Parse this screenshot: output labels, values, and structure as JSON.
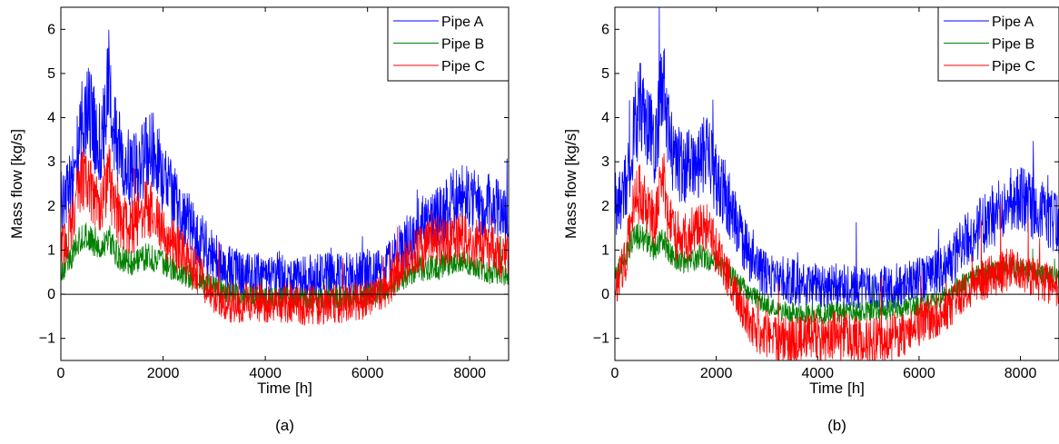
{
  "chart_data": [
    {
      "type": "line",
      "panel_label": "(a)",
      "xlabel": "Time [h]",
      "ylabel": "Mass flow [kg/s]",
      "xlim": [
        0,
        8760
      ],
      "ylim": [
        -1.5,
        6.5
      ],
      "xticks": [
        0,
        2000,
        4000,
        6000,
        8000
      ],
      "yticks": [
        -1,
        0,
        1,
        2,
        3,
        4,
        5,
        6
      ],
      "ytick_labels": [
        "−1",
        "0",
        "1",
        "2",
        "3",
        "4",
        "5",
        "6"
      ],
      "zero_line": true,
      "grid": false,
      "legend": "top-right",
      "x": [
        0,
        200,
        300,
        400,
        500,
        600,
        700,
        800,
        900,
        950,
        1000,
        1100,
        1200,
        1400,
        1600,
        1700,
        1800,
        1900,
        2000,
        2200,
        2400,
        2600,
        2800,
        3000,
        3200,
        3400,
        3600,
        3800,
        4000,
        4200,
        4400,
        4600,
        4800,
        5000,
        5200,
        5400,
        5600,
        5800,
        6000,
        6200,
        6400,
        6600,
        6800,
        7000,
        7200,
        7400,
        7600,
        7800,
        8000,
        8200,
        8400,
        8600,
        8760
      ],
      "series": [
        {
          "name": "Pipe A",
          "color": "#0000ff",
          "noise": 0.9,
          "values": [
            2.2,
            2.4,
            3.0,
            3.8,
            4.2,
            4.0,
            3.6,
            3.4,
            4.4,
            5.0,
            4.0,
            3.4,
            3.0,
            2.8,
            3.0,
            3.2,
            3.2,
            3.0,
            2.6,
            2.2,
            1.8,
            1.4,
            1.1,
            0.8,
            0.6,
            0.5,
            0.45,
            0.4,
            0.4,
            0.45,
            0.4,
            0.38,
            0.38,
            0.38,
            0.4,
            0.4,
            0.4,
            0.4,
            0.45,
            0.45,
            0.6,
            0.9,
            1.2,
            1.5,
            1.6,
            1.8,
            2.0,
            2.3,
            2.2,
            2.0,
            2.0,
            1.8,
            1.7
          ]
        },
        {
          "name": "Pipe B",
          "color": "#008000",
          "noise": 0.45,
          "values": [
            0.5,
            0.8,
            1.1,
            1.3,
            1.3,
            1.2,
            1.1,
            1.0,
            1.2,
            1.3,
            1.1,
            0.9,
            0.8,
            0.7,
            0.8,
            0.9,
            0.8,
            0.75,
            0.7,
            0.55,
            0.45,
            0.35,
            0.25,
            0.15,
            0.05,
            0.0,
            -0.05,
            -0.05,
            -0.08,
            -0.08,
            -0.08,
            -0.1,
            -0.1,
            -0.1,
            -0.1,
            -0.08,
            -0.05,
            -0.05,
            0.0,
            0.05,
            0.15,
            0.3,
            0.45,
            0.55,
            0.6,
            0.6,
            0.7,
            0.75,
            0.7,
            0.6,
            0.5,
            0.5,
            0.4
          ]
        },
        {
          "name": "Pipe C",
          "color": "#ff0000",
          "noise": 0.8,
          "values": [
            1.0,
            1.5,
            2.2,
            2.6,
            2.6,
            2.3,
            2.0,
            1.9,
            2.5,
            2.8,
            2.2,
            1.8,
            1.6,
            1.5,
            1.8,
            2.0,
            1.8,
            1.6,
            1.4,
            1.1,
            0.9,
            0.6,
            0.3,
            0.0,
            -0.15,
            -0.2,
            -0.2,
            -0.2,
            -0.2,
            -0.2,
            -0.2,
            -0.2,
            -0.25,
            -0.25,
            -0.25,
            -0.2,
            -0.2,
            -0.15,
            -0.1,
            0.0,
            0.2,
            0.5,
            0.8,
            1.0,
            1.1,
            1.2,
            1.2,
            1.3,
            1.2,
            1.1,
            1.0,
            0.9,
            0.9
          ]
        }
      ]
    },
    {
      "type": "line",
      "panel_label": "(b)",
      "xlabel": "Time [h]",
      "ylabel": "Mass flow [kg/s]",
      "xlim": [
        0,
        8760
      ],
      "ylim": [
        -1.5,
        6.5
      ],
      "xticks": [
        0,
        2000,
        4000,
        6000,
        8000
      ],
      "yticks": [
        -1,
        0,
        1,
        2,
        3,
        4,
        5,
        6
      ],
      "ytick_labels": [
        "−1",
        "0",
        "1",
        "2",
        "3",
        "4",
        "5",
        "6"
      ],
      "zero_line": true,
      "grid": false,
      "legend": "top-right",
      "x": [
        0,
        200,
        300,
        400,
        500,
        600,
        700,
        800,
        900,
        950,
        1000,
        1100,
        1200,
        1400,
        1600,
        1700,
        1800,
        1900,
        2000,
        2200,
        2400,
        2600,
        2800,
        3000,
        3200,
        3400,
        3600,
        3800,
        4000,
        4200,
        4400,
        4600,
        4800,
        5000,
        5200,
        5400,
        5600,
        5800,
        6000,
        6200,
        6400,
        6600,
        6800,
        7000,
        7200,
        7400,
        7600,
        7800,
        8000,
        8200,
        8400,
        8600,
        8760
      ],
      "series": [
        {
          "name": "Pipe A",
          "color": "#0000ff",
          "noise": 0.9,
          "values": [
            2.0,
            2.4,
            3.0,
            3.8,
            4.2,
            4.0,
            3.6,
            3.4,
            4.4,
            5.0,
            4.0,
            3.4,
            3.0,
            2.8,
            3.0,
            3.2,
            3.2,
            3.0,
            2.6,
            2.2,
            1.6,
            1.0,
            0.6,
            0.4,
            0.35,
            0.3,
            0.25,
            0.2,
            0.2,
            0.2,
            0.18,
            0.15,
            0.12,
            0.1,
            0.12,
            0.15,
            0.2,
            0.25,
            0.3,
            0.4,
            0.5,
            0.7,
            1.0,
            1.3,
            1.5,
            1.7,
            1.9,
            2.1,
            2.1,
            2.0,
            1.9,
            1.7,
            1.5
          ]
        },
        {
          "name": "Pipe B",
          "color": "#008000",
          "noise": 0.4,
          "values": [
            0.4,
            0.8,
            1.1,
            1.3,
            1.3,
            1.2,
            1.1,
            1.0,
            1.2,
            1.3,
            1.1,
            0.9,
            0.8,
            0.7,
            0.8,
            0.9,
            0.8,
            0.75,
            0.7,
            0.5,
            0.3,
            0.1,
            -0.1,
            -0.25,
            -0.35,
            -0.4,
            -0.42,
            -0.45,
            -0.45,
            -0.42,
            -0.4,
            -0.4,
            -0.4,
            -0.38,
            -0.35,
            -0.35,
            -0.32,
            -0.3,
            -0.25,
            -0.2,
            -0.1,
            0.0,
            0.2,
            0.35,
            0.45,
            0.5,
            0.55,
            0.6,
            0.55,
            0.5,
            0.45,
            0.4,
            0.35
          ]
        },
        {
          "name": "Pipe C",
          "color": "#ff0000",
          "noise": 0.8,
          "values": [
            0.2,
            0.7,
            1.5,
            2.1,
            2.3,
            2.0,
            1.8,
            1.6,
            2.4,
            2.8,
            2.0,
            1.6,
            1.3,
            1.3,
            1.5,
            1.6,
            1.5,
            1.3,
            1.0,
            0.5,
            0.0,
            -0.5,
            -0.8,
            -0.9,
            -1.0,
            -1.05,
            -1.05,
            -1.0,
            -0.95,
            -0.95,
            -0.95,
            -1.0,
            -1.05,
            -1.1,
            -1.05,
            -1.0,
            -0.9,
            -0.8,
            -0.7,
            -0.6,
            -0.45,
            -0.3,
            -0.1,
            0.1,
            0.3,
            0.4,
            0.5,
            0.55,
            0.5,
            0.45,
            0.3,
            0.2,
            0.1
          ]
        }
      ]
    }
  ]
}
